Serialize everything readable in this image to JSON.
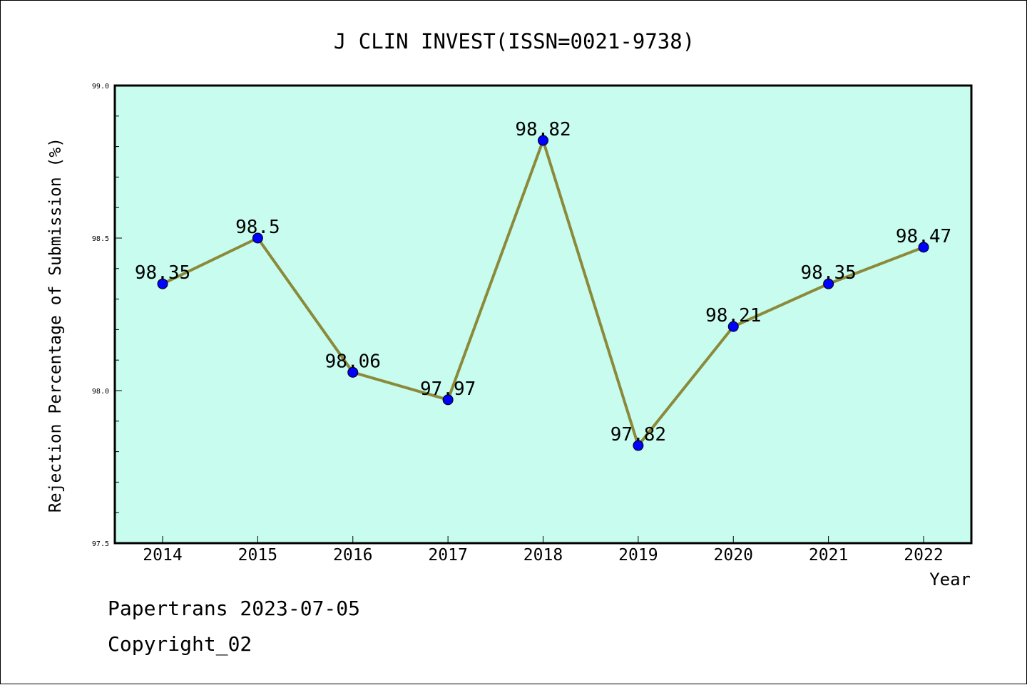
{
  "footer": {
    "source_date": "Papertrans 2023-07-05",
    "copyright": "Copyright_02"
  },
  "colors": {
    "plot_background": "#c8fcee",
    "line": "#8b8a3a",
    "marker": "#0000ff"
  },
  "chart_data": {
    "type": "line",
    "title": "J CLIN INVEST(ISSN=0021-9738)",
    "xlabel": "Year",
    "ylabel": "Rejection Percentage of Submission (%)",
    "categories": [
      "2014",
      "2015",
      "2016",
      "2017",
      "2018",
      "2019",
      "2020",
      "2021",
      "2022"
    ],
    "series": [
      {
        "values": [
          98.35,
          98.5,
          98.06,
          97.97,
          98.82,
          97.82,
          98.21,
          98.35,
          98.47
        ],
        "labels": [
          "98.35",
          "98.5",
          "98.06",
          "97.97",
          "98.82",
          "97.82",
          "98.21",
          "98.35",
          "98.47"
        ]
      }
    ],
    "ylim": [
      97.5,
      99.0
    ],
    "yticks": [
      "97.5",
      "98.0",
      "98.5",
      "99.0"
    ],
    "grid": false,
    "legend": "none"
  }
}
